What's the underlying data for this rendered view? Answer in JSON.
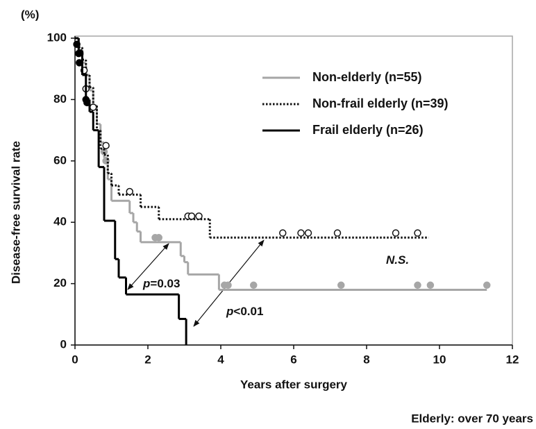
{
  "chart_data": {
    "type": "step",
    "y_unit": "(%)",
    "y_axis_title": "Disease-free survival rate",
    "x_axis_title": "Years after surgery",
    "footnote": "Elderly: over 70 years",
    "xlim": [
      0,
      12
    ],
    "xticks": [
      0,
      2,
      4,
      6,
      8,
      10,
      12
    ],
    "ylim": [
      0,
      100
    ],
    "yticks": [
      0,
      20,
      40,
      60,
      80,
      100
    ],
    "series": [
      {
        "name": "Non-elderly (n=55)",
        "color": "#a6a6a6",
        "dash": "solid",
        "marker": "filled",
        "x": [
          0,
          0.1,
          0.2,
          0.3,
          0.4,
          0.5,
          0.6,
          0.7,
          0.8,
          0.9,
          1.0,
          1.5,
          1.6,
          1.7,
          1.8,
          2.9,
          3.0,
          3.1,
          3.95,
          11.3
        ],
        "values": [
          100,
          96,
          92,
          88,
          83,
          78,
          72,
          66,
          61,
          54,
          47,
          43,
          40,
          37,
          33.5,
          29,
          27,
          23,
          18,
          18
        ],
        "censor_x": [
          0.05,
          0.15,
          0.8,
          0.85,
          2.2,
          2.3,
          4.1,
          4.2,
          4.9,
          7.3,
          9.4,
          9.75,
          11.3
        ],
        "censor_y": [
          98,
          95,
          63,
          60,
          35,
          35,
          19.5,
          19.5,
          19.5,
          19.5,
          19.5,
          19.5,
          19.5
        ]
      },
      {
        "name": "Non-frail elderly (n=39)",
        "color": "#111111",
        "dash": "dotted",
        "marker": "open",
        "x": [
          0,
          0.1,
          0.2,
          0.3,
          0.4,
          0.5,
          0.6,
          0.7,
          0.8,
          0.9,
          1.0,
          1.2,
          1.8,
          2.3,
          3.7,
          9.7
        ],
        "values": [
          100,
          97,
          93,
          88,
          84,
          78,
          70,
          64,
          62,
          56,
          52,
          49,
          45,
          41,
          35,
          35
        ],
        "censor_x": [
          0.25,
          0.3,
          0.5,
          0.85,
          1.5,
          3.1,
          3.2,
          3.4,
          5.7,
          6.2,
          6.4,
          7.2,
          8.8,
          9.4
        ],
        "censor_y": [
          89.5,
          83.5,
          77.5,
          65,
          50,
          42,
          42,
          42,
          36.5,
          36.5,
          36.5,
          36.5,
          36.5,
          36.5
        ]
      },
      {
        "name": "Frail elderly (n=26)",
        "color": "#000000",
        "dash": "solid",
        "marker": "filled",
        "x": [
          0,
          0.1,
          0.2,
          0.3,
          0.4,
          0.5,
          0.65,
          0.8,
          1.1,
          1.2,
          1.4,
          2.85,
          3.05
        ],
        "values": [
          100,
          96,
          88,
          80,
          76,
          70,
          58,
          40.5,
          28,
          22,
          16.5,
          8.5,
          0
        ],
        "censor_x": [
          0.05,
          0.1,
          0.12,
          0.3,
          0.33
        ],
        "censor_y": [
          98,
          95,
          92,
          80,
          79
        ]
      }
    ],
    "annotations": [
      {
        "italic": "p",
        "text": "=0.03"
      },
      {
        "italic": "p",
        "text": "<0.01"
      },
      {
        "italic": "N.S.",
        "text": ""
      }
    ]
  }
}
